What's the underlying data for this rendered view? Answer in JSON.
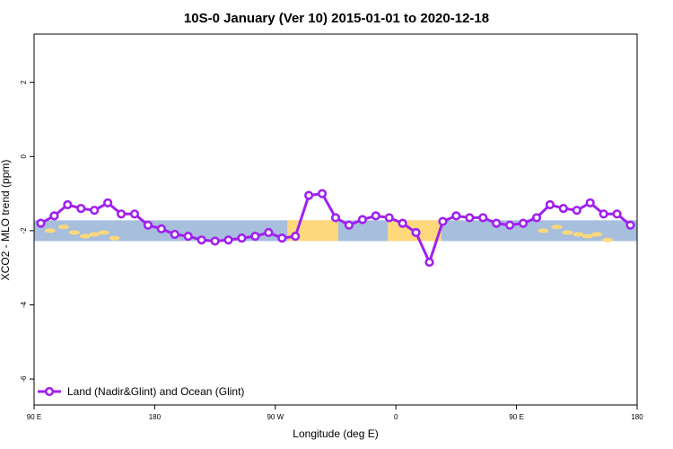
{
  "chart_data": {
    "type": "line",
    "title": "10S-0 January (Ver 10)   2015-01-01 to 2020-12-18",
    "xlabel": "Longitude (deg E)",
    "ylabel": "XCO2 - MLO trend (ppm)",
    "xlim": [
      90,
      540
    ],
    "ylim": [
      -6.7,
      3.3
    ],
    "x_ticks": [
      {
        "value": 90,
        "label": "90 E"
      },
      {
        "value": 180,
        "label": "180"
      },
      {
        "value": 270,
        "label": "90 W"
      },
      {
        "value": 360,
        "label": "0"
      },
      {
        "value": 450,
        "label": "90 E"
      },
      {
        "value": 540,
        "label": "180"
      }
    ],
    "y_ticks": [
      {
        "value": 2,
        "label": "2"
      },
      {
        "value": 0,
        "label": "0"
      },
      {
        "value": -2,
        "label": "-2"
      },
      {
        "value": -4,
        "label": "-4"
      },
      {
        "value": -6,
        "label": "-6"
      }
    ],
    "legend": {
      "placement": "bottom-left",
      "entries": [
        "Land (Nadir&Glint) and Ocean (Glint)"
      ]
    },
    "series": [
      {
        "name": "Land (Nadir&Glint) and Ocean (Glint)",
        "color": "#a020f0",
        "x": [
          95,
          105,
          115,
          125,
          135,
          145,
          155,
          165,
          175,
          185,
          195,
          205,
          215,
          225,
          235,
          245,
          255,
          265,
          275,
          285,
          295,
          305,
          315,
          325,
          335,
          345,
          355,
          365,
          375,
          385,
          395,
          405,
          415,
          425,
          435,
          445,
          455,
          465,
          475,
          485,
          495,
          505,
          515,
          525,
          535
        ],
        "y": [
          -1.8,
          -1.6,
          -1.3,
          -1.4,
          -1.45,
          -1.25,
          -1.55,
          -1.55,
          -1.85,
          -1.95,
          -2.1,
          -2.15,
          -2.25,
          -2.28,
          -2.25,
          -2.2,
          -2.15,
          -2.05,
          -2.2,
          -2.15,
          -1.05,
          -1.0,
          -1.65,
          -1.85,
          -1.7,
          -1.6,
          -1.65,
          -1.8,
          -2.05,
          -2.85,
          -1.75,
          -1.6,
          -1.65,
          -1.65,
          -1.8,
          -1.85,
          -1.8,
          -1.65,
          -1.3,
          -1.4,
          -1.45,
          -1.25,
          -1.55,
          -1.55,
          -1.85
        ]
      }
    ],
    "background_map": {
      "y_range": [
        -2.28,
        -1.72
      ],
      "ocean_color": "#a7bedd",
      "land_color": "#fed97b",
      "land_x_ranges": [
        [
          279,
          317
        ],
        [
          354,
          394
        ]
      ],
      "island_centers": [
        [
          102,
          -2.0
        ],
        [
          112,
          -1.9
        ],
        [
          120,
          -2.05
        ],
        [
          128,
          -2.15
        ],
        [
          135,
          -2.1
        ],
        [
          142,
          -2.05
        ],
        [
          150,
          -2.2
        ],
        [
          470,
          -2.0
        ],
        [
          480,
          -1.9
        ],
        [
          488,
          -2.05
        ],
        [
          496,
          -2.1
        ],
        [
          503,
          -2.15
        ],
        [
          510,
          -2.1
        ],
        [
          518,
          -2.25
        ]
      ]
    }
  }
}
